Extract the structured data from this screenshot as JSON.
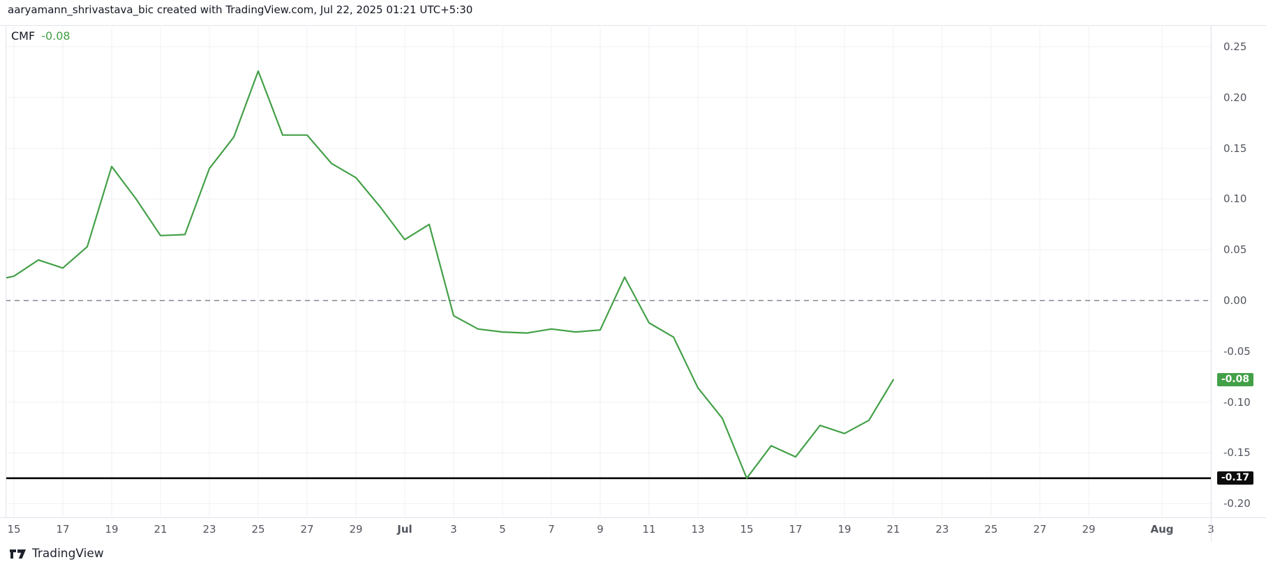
{
  "header": {
    "attribution": "aaryamann_shrivastava_bic created with TradingView.com, Jul 22, 2025 01:21 UTC+5:30"
  },
  "legend": {
    "indicator": "CMF",
    "value": "-0.08"
  },
  "footer": {
    "logo_text": "TradingView"
  },
  "colors": {
    "line": "#43a047",
    "badge_green": "#43a047",
    "badge_black": "#0c0c0c",
    "zero_line": "#848792",
    "level_line": "#000000",
    "grid": "#f0f1f4",
    "axis_text": "#52555e",
    "text": "#131722",
    "background": "#ffffff"
  },
  "chart_data": {
    "type": "line",
    "series_name": "CMF",
    "legend_value": "-0.08",
    "x": [
      "Jun 14",
      "Jun 15",
      "Jun 16",
      "Jun 17",
      "Jun 18",
      "Jun 19",
      "Jun 20",
      "Jun 21",
      "Jun 22",
      "Jun 23",
      "Jun 24",
      "Jun 25",
      "Jun 26",
      "Jun 27",
      "Jun 28",
      "Jun 29",
      "Jun 30",
      "Jul 1",
      "Jul 2",
      "Jul 3",
      "Jul 4",
      "Jul 5",
      "Jul 6",
      "Jul 7",
      "Jul 8",
      "Jul 9",
      "Jul 10",
      "Jul 11",
      "Jul 12",
      "Jul 13",
      "Jul 14",
      "Jul 15",
      "Jul 16",
      "Jul 17",
      "Jul 18",
      "Jul 19",
      "Jul 20",
      "Jul 21"
    ],
    "values": [
      0.019,
      0.024,
      0.04,
      0.032,
      0.053,
      0.132,
      0.1,
      0.064,
      0.065,
      0.13,
      0.161,
      0.226,
      0.163,
      0.163,
      0.135,
      0.121,
      0.092,
      0.06,
      0.075,
      -0.015,
      -0.028,
      -0.031,
      -0.032,
      -0.028,
      -0.031,
      -0.029,
      0.023,
      -0.022,
      -0.036,
      -0.086,
      -0.116,
      -0.175,
      -0.143,
      -0.154,
      -0.123,
      -0.131,
      -0.118,
      -0.078
    ],
    "ylim": [
      -0.225,
      0.275
    ],
    "grid": true,
    "y_ticks": [
      {
        "label": "0.25",
        "value": 0.25
      },
      {
        "label": "0.20",
        "value": 0.2
      },
      {
        "label": "0.15",
        "value": 0.15
      },
      {
        "label": "0.10",
        "value": 0.1
      },
      {
        "label": "0.05",
        "value": 0.05
      },
      {
        "label": "0.00",
        "value": 0.0
      },
      {
        "label": "-0.05",
        "value": -0.05
      },
      {
        "label": "-0.10",
        "value": -0.1
      },
      {
        "label": "-0.15",
        "value": -0.15
      },
      {
        "label": "-0.20",
        "value": -0.2
      }
    ],
    "x_ticks": [
      {
        "label": "15",
        "d": 0
      },
      {
        "label": "17",
        "d": 2
      },
      {
        "label": "19",
        "d": 4
      },
      {
        "label": "21",
        "d": 6
      },
      {
        "label": "23",
        "d": 8
      },
      {
        "label": "25",
        "d": 10
      },
      {
        "label": "27",
        "d": 12
      },
      {
        "label": "29",
        "d": 14
      },
      {
        "label": "Jul",
        "d": 16,
        "bold": true
      },
      {
        "label": "3",
        "d": 18
      },
      {
        "label": "5",
        "d": 20
      },
      {
        "label": "7",
        "d": 22
      },
      {
        "label": "9",
        "d": 24
      },
      {
        "label": "11",
        "d": 26
      },
      {
        "label": "13",
        "d": 28
      },
      {
        "label": "15",
        "d": 30
      },
      {
        "label": "17",
        "d": 32
      },
      {
        "label": "19",
        "d": 34
      },
      {
        "label": "21",
        "d": 36
      },
      {
        "label": "23",
        "d": 38
      },
      {
        "label": "25",
        "d": 40
      },
      {
        "label": "27",
        "d": 42
      },
      {
        "label": "29",
        "d": 44
      },
      {
        "label": "Aug",
        "d": 47,
        "bold": true
      },
      {
        "label": "3",
        "d": 49
      }
    ],
    "annotations": {
      "zero_line": {
        "value": 0.0,
        "style": "dashed"
      },
      "level_line": {
        "value": -0.175,
        "label": "-0.17"
      },
      "last_value_badge": {
        "value": -0.078,
        "label": "-0.08"
      }
    }
  }
}
